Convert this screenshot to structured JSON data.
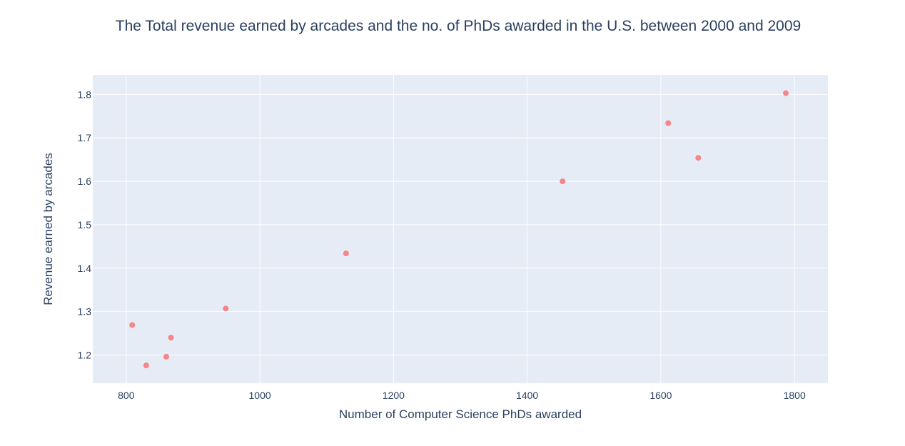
{
  "chart_data": {
    "type": "scatter",
    "title": "The Total revenue earned by arcades and the no. of PhDs awarded in the U.S. between 2000 and 2009",
    "xlabel": "Number of Computer Science PhDs awarded",
    "ylabel": "Revenue earned by arcades",
    "xlim": [
      750,
      1850
    ],
    "ylim": [
      1.135,
      1.845
    ],
    "x_ticks": [
      800,
      1000,
      1200,
      1400,
      1600,
      1800
    ],
    "y_ticks": [
      1.2,
      1.3,
      1.4,
      1.5,
      1.6,
      1.7,
      1.8
    ],
    "x_tick_labels": [
      "800",
      "1000",
      "1200",
      "1400",
      "1600",
      "1800"
    ],
    "y_tick_labels": [
      "1.2",
      "1.3",
      "1.4",
      "1.5",
      "1.6",
      "1.7",
      "1.8"
    ],
    "grid": true,
    "legend": false,
    "colors": {
      "marker": "#f4868a",
      "plot_bg": "#e5ecf6",
      "grid": "#ffffff",
      "text": "#2a3f5f"
    },
    "points": [
      {
        "x": 809,
        "y": 1.269
      },
      {
        "x": 830,
        "y": 1.176
      },
      {
        "x": 860,
        "y": 1.196
      },
      {
        "x": 867,
        "y": 1.24
      },
      {
        "x": 949,
        "y": 1.307
      },
      {
        "x": 1129,
        "y": 1.434
      },
      {
        "x": 1453,
        "y": 1.6
      },
      {
        "x": 1611,
        "y": 1.734
      },
      {
        "x": 1656,
        "y": 1.654
      },
      {
        "x": 1787,
        "y": 1.803
      }
    ]
  }
}
